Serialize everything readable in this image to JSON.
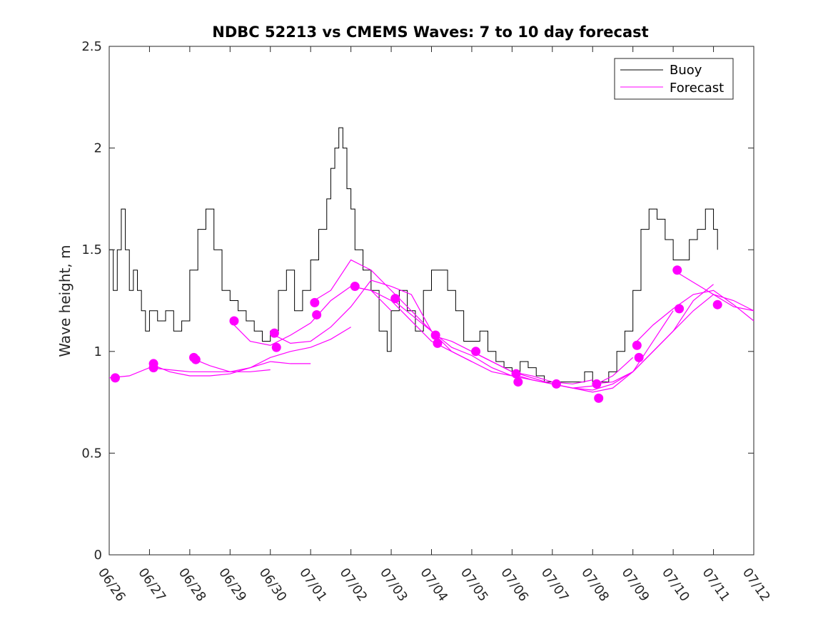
{
  "chart_data": {
    "type": "line",
    "title": "NDBC 52213 vs CMEMS Waves: 7 to 10 day forecast",
    "xlabel": "",
    "ylabel": "Wave height, m",
    "x_ticks": [
      "06/26",
      "06/27",
      "06/28",
      "06/29",
      "06/30",
      "07/01",
      "07/02",
      "07/03",
      "07/04",
      "07/05",
      "07/06",
      "07/07",
      "07/08",
      "07/09",
      "07/10",
      "07/11",
      "07/12"
    ],
    "y_ticks": [
      "0",
      "0.5",
      "1",
      "1.5",
      "2",
      "2.5"
    ],
    "xlim_days": [
      0,
      16
    ],
    "ylim": [
      0,
      2.5
    ],
    "grid": false,
    "legend": {
      "position": "top-right",
      "entries": [
        "Buoy",
        "Forecast"
      ]
    },
    "colors": {
      "buoy": "#000000",
      "forecast": "#ff00ff"
    },
    "series": [
      {
        "name": "Buoy",
        "x_days": [
          0.0,
          0.1,
          0.2,
          0.3,
          0.4,
          0.5,
          0.6,
          0.7,
          0.8,
          0.9,
          1.0,
          1.2,
          1.4,
          1.6,
          1.8,
          2.0,
          2.2,
          2.4,
          2.6,
          2.8,
          3.0,
          3.2,
          3.4,
          3.6,
          3.8,
          4.0,
          4.2,
          4.4,
          4.6,
          4.8,
          5.0,
          5.2,
          5.4,
          5.5,
          5.6,
          5.7,
          5.8,
          5.9,
          6.0,
          6.1,
          6.3,
          6.5,
          6.7,
          6.9,
          7.0,
          7.2,
          7.4,
          7.6,
          7.8,
          8.0,
          8.2,
          8.4,
          8.6,
          8.8,
          9.0,
          9.2,
          9.4,
          9.6,
          9.8,
          10.0,
          10.2,
          10.4,
          10.6,
          10.8,
          11.0,
          11.2,
          11.4,
          11.6,
          11.8,
          12.0,
          12.2,
          12.4,
          12.6,
          12.8,
          13.0,
          13.2,
          13.4,
          13.6,
          13.8,
          14.0,
          14.2,
          14.4,
          14.6,
          14.8,
          15.0,
          15.1
        ],
        "values": [
          1.5,
          1.3,
          1.5,
          1.7,
          1.5,
          1.3,
          1.4,
          1.3,
          1.2,
          1.1,
          1.2,
          1.15,
          1.2,
          1.1,
          1.15,
          1.4,
          1.6,
          1.7,
          1.5,
          1.3,
          1.25,
          1.2,
          1.15,
          1.1,
          1.05,
          1.1,
          1.3,
          1.4,
          1.2,
          1.3,
          1.45,
          1.6,
          1.75,
          1.9,
          2.0,
          2.1,
          2.0,
          1.8,
          1.7,
          1.5,
          1.4,
          1.3,
          1.1,
          1.0,
          1.2,
          1.3,
          1.2,
          1.1,
          1.3,
          1.4,
          1.4,
          1.3,
          1.2,
          1.05,
          1.05,
          1.1,
          1.0,
          0.95,
          0.92,
          0.9,
          0.95,
          0.92,
          0.88,
          0.85,
          0.85,
          0.85,
          0.85,
          0.85,
          0.9,
          0.85,
          0.85,
          0.9,
          1.0,
          1.1,
          1.3,
          1.6,
          1.7,
          1.65,
          1.55,
          1.45,
          1.45,
          1.55,
          1.6,
          1.7,
          1.6,
          1.5
        ]
      },
      {
        "name": "Forecast",
        "x_days": [
          [
            0.0,
            0.5,
            1.0,
            1.5,
            2.0,
            2.5,
            3.0,
            3.5,
            4.0
          ],
          [
            1.0,
            1.5,
            2.0,
            2.5,
            3.0,
            3.5,
            4.0,
            4.5,
            5.0
          ],
          [
            2.0,
            2.5,
            3.0,
            3.5,
            4.0,
            4.5,
            5.0,
            5.5,
            6.0
          ],
          [
            3.0,
            3.5,
            4.0,
            4.5,
            5.0,
            5.5,
            6.0,
            6.5,
            7.0
          ],
          [
            4.0,
            4.5,
            5.0,
            5.5,
            6.0,
            6.5,
            7.0,
            7.5,
            8.0
          ],
          [
            5.0,
            5.5,
            6.0,
            6.5,
            7.0,
            7.5,
            8.0,
            8.5,
            9.0
          ],
          [
            6.0,
            6.5,
            7.0,
            7.5,
            8.0,
            8.5,
            9.0,
            9.5,
            10.0
          ],
          [
            7.0,
            7.5,
            8.0,
            8.5,
            9.0,
            9.5,
            10.0,
            10.5,
            11.0
          ],
          [
            8.0,
            8.5,
            9.0,
            9.5,
            10.0,
            10.5,
            11.0,
            11.5,
            12.0
          ],
          [
            9.0,
            9.5,
            10.0,
            10.5,
            11.0,
            11.5,
            12.0,
            12.5,
            13.0
          ],
          [
            10.0,
            10.5,
            11.0,
            11.5,
            12.0,
            12.5,
            13.0,
            13.5,
            14.0
          ],
          [
            11.0,
            11.5,
            12.0,
            12.5,
            13.0,
            13.5,
            14.0,
            14.5,
            15.0
          ],
          [
            12.0,
            12.5,
            13.0,
            13.5,
            14.0,
            14.5,
            15.0,
            15.5,
            16.0
          ],
          [
            13.0,
            13.5,
            14.0,
            14.5,
            15.0,
            15.5,
            16.0
          ],
          [
            14.0,
            14.5,
            15.0,
            15.5,
            16.0
          ]
        ],
        "values": [
          [
            0.87,
            0.88,
            0.92,
            0.91,
            0.9,
            0.9,
            0.9,
            0.9,
            0.91
          ],
          [
            0.94,
            0.9,
            0.88,
            0.88,
            0.89,
            0.92,
            0.95,
            0.94,
            0.94
          ],
          [
            0.97,
            0.93,
            0.9,
            0.92,
            0.97,
            1.0,
            1.02,
            1.06,
            1.12
          ],
          [
            1.15,
            1.05,
            1.03,
            1.08,
            1.14,
            1.25,
            1.32,
            1.3,
            1.2
          ],
          [
            1.09,
            1.04,
            1.05,
            1.12,
            1.22,
            1.35,
            1.32,
            1.28,
            1.1
          ],
          [
            1.24,
            1.3,
            1.45,
            1.4,
            1.3,
            1.2,
            1.1,
            1.0,
            0.95
          ],
          [
            1.32,
            1.3,
            1.25,
            1.15,
            1.05,
            1.0,
            0.95,
            0.9,
            0.88
          ],
          [
            1.26,
            1.18,
            1.1,
            1.02,
            0.98,
            0.92,
            0.88,
            0.86,
            0.84
          ],
          [
            1.08,
            1.05,
            1.0,
            0.95,
            0.9,
            0.88,
            0.85,
            0.84,
            0.86
          ],
          [
            1.0,
            0.95,
            0.9,
            0.87,
            0.84,
            0.82,
            0.83,
            0.88,
            0.97
          ],
          [
            0.89,
            0.86,
            0.84,
            0.82,
            0.8,
            0.82,
            0.9,
            1.05,
            1.2
          ],
          [
            0.84,
            0.82,
            0.81,
            0.84,
            0.9,
            1.0,
            1.1,
            1.25,
            1.33
          ],
          [
            0.84,
            0.85,
            0.9,
            1.0,
            1.1,
            1.2,
            1.28,
            1.25,
            1.2
          ],
          [
            1.03,
            1.13,
            1.21,
            1.28,
            1.3,
            1.23,
            1.15
          ],
          [
            1.4,
            1.34,
            1.28,
            1.22,
            1.2
          ]
        ]
      }
    ],
    "markers": {
      "x_days": [
        0.15,
        1.1,
        1.1,
        2.1,
        2.15,
        3.1,
        4.1,
        4.15,
        5.1,
        5.15,
        6.1,
        7.1,
        8.1,
        8.15,
        9.1,
        10.1,
        10.15,
        11.1,
        12.1,
        12.15,
        13.1,
        13.15,
        14.1,
        14.15,
        15.1
      ],
      "values": [
        0.87,
        0.94,
        0.92,
        0.97,
        0.96,
        1.15,
        1.09,
        1.02,
        1.24,
        1.18,
        1.32,
        1.26,
        1.08,
        1.04,
        1.0,
        0.89,
        0.85,
        0.84,
        0.84,
        0.77,
        1.03,
        0.97,
        1.4,
        1.21,
        1.23
      ]
    }
  }
}
